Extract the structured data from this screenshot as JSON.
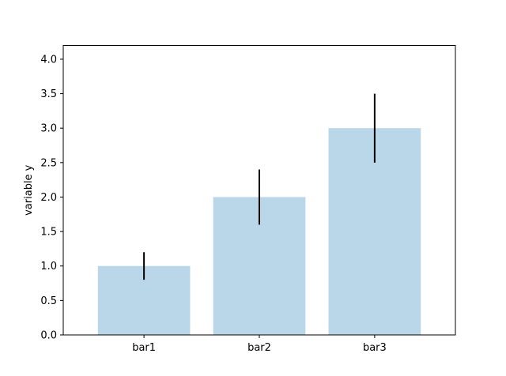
{
  "chart_data": {
    "type": "bar",
    "title": "",
    "xlabel": "",
    "ylabel": "variable y",
    "categories": [
      "bar1",
      "bar2",
      "bar3"
    ],
    "values": [
      1.0,
      2.0,
      3.0
    ],
    "errors": [
      0.2,
      0.4,
      0.5
    ],
    "ylim": [
      0,
      4.2
    ],
    "yticks": [
      "0.0",
      "0.5",
      "1.0",
      "1.5",
      "2.0",
      "2.5",
      "3.0",
      "3.5",
      "4.0"
    ],
    "grid": false,
    "bar_color": "#bad6e9",
    "error_color": "#000000"
  }
}
